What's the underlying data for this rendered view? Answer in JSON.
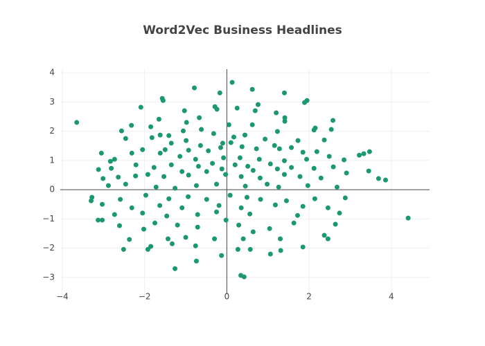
{
  "chart_data": {
    "type": "scatter",
    "title": "Word2Vec Business Headlines",
    "color": "#1b9870",
    "grid": true,
    "zeroline": true,
    "xlim": [
      -4.05,
      4.93
    ],
    "ylim": [
      -3.57,
      4.12
    ],
    "xticks": [
      {
        "value": -4,
        "label": "−4"
      },
      {
        "value": -2,
        "label": "−2"
      },
      0,
      2,
      4
    ],
    "yticks": [
      {
        "value": -3,
        "label": "−3"
      },
      {
        "value": -2,
        "label": "−2"
      },
      {
        "value": -1,
        "label": "−1"
      },
      0,
      1,
      2,
      3,
      4
    ],
    "x": [
      -3.65,
      0.13,
      -0.79,
      0.62,
      -1.57,
      -1.55,
      -0.17,
      1.4,
      1.95,
      1.89,
      -1.03,
      -0.29,
      -0.24,
      0.25,
      0.76,
      0.69,
      1.2,
      1.41,
      1.41,
      2.58,
      -2.09,
      -1.65,
      -0.98,
      -0.67,
      0.05,
      0.62,
      -2.32,
      -1.85,
      2.15,
      2.12,
      2.54,
      -2.56,
      -1.06,
      -0.62,
      -0.32,
      -1.62,
      -1.41,
      0.44,
      1.23,
      -2.46,
      -1.82,
      0.17,
      0.93,
      -0.99,
      -0.1,
      0.1,
      1.73,
      2.37,
      -1.35,
      -0.64,
      0.37,
      1.16,
      1.57,
      -3.05,
      -2.31,
      -2.05,
      -1.5,
      -0.93,
      -0.45,
      -0.15,
      0.72,
      1.28,
      1.85,
      2.19,
      3.22,
      3.33,
      3.47,
      -2.73,
      -2.83,
      -1.62,
      -1.14,
      -0.76,
      -0.08,
      0.32,
      0.79,
      1.4,
      1.94,
      2.49,
      2.85,
      -2.21,
      -1.77,
      -1.35,
      -0.69,
      -0.35,
      0.2,
      0.51,
      1.06,
      1.57,
      -3.12,
      -2.81,
      -1.09,
      -0.49,
      -0.12,
      0.64,
      1.23,
      2.12,
      2.59,
      3.45,
      -3.01,
      -2.64,
      -2.22,
      -1.92,
      -1.53,
      -0.93,
      -0.03,
      0.35,
      0.81,
      1.4,
      1.78,
      2.29,
      2.91,
      3.69,
      3.86,
      -2.88,
      -2.46,
      -1.72,
      -1.26,
      -0.74,
      -0.25,
      0.45,
      0.98,
      1.26,
      1.97,
      2.68,
      -3.28,
      -3.3,
      -2.59,
      -1.97,
      -1.41,
      -0.94,
      -0.49,
      0.08,
      0.49,
      0.82,
      1.45,
      2.14,
      2.88,
      -3.03,
      -2.31,
      -1.63,
      -1.09,
      -0.19,
      0.35,
      1.18,
      1.85,
      2.46,
      -2.73,
      -2.05,
      -1.46,
      -0.71,
      -0.25,
      0.56,
      1.72,
      2.74,
      -3.13,
      -3.03,
      -2.61,
      -1.75,
      -1.2,
      -0.02,
      0.29,
      1.04,
      1.63,
      2.64,
      4.41,
      -2.02,
      -0.71,
      0.64,
      -2.37,
      -1.43,
      -1.0,
      -0.3,
      0.4,
      1.3,
      2.37,
      2.46,
      -1.33,
      -1.85,
      -2.51,
      -1.92,
      -0.76,
      0.27,
      0.57,
      1.85,
      1.31,
      -0.13,
      1.06,
      -0.74,
      -1.26,
      0.34,
      0.42
    ],
    "y": [
      2.3,
      3.67,
      3.48,
      3.43,
      3.12,
      3.05,
      3.31,
      3.31,
      3.05,
      2.98,
      2.7,
      2.84,
      2.75,
      2.79,
      2.91,
      2.7,
      2.63,
      2.46,
      2.34,
      2.37,
      2.82,
      2.41,
      2.3,
      2.46,
      2.22,
      2.22,
      2.2,
      2.15,
      2.11,
      2.04,
      2.06,
      2.01,
      2.01,
      2.06,
      1.92,
      1.87,
      1.85,
      1.87,
      1.99,
      1.75,
      1.78,
      1.8,
      1.73,
      1.68,
      1.59,
      1.61,
      1.68,
      1.7,
      1.59,
      1.51,
      1.47,
      1.51,
      1.44,
      1.25,
      1.25,
      1.37,
      1.37,
      1.35,
      1.33,
      1.44,
      1.4,
      1.4,
      1.28,
      1.3,
      1.18,
      1.23,
      1.3,
      1.04,
      0.97,
      1.25,
      1.14,
      1.04,
      1.09,
      1.09,
      1.04,
      0.99,
      1.04,
      1.14,
      1.02,
      0.85,
      0.76,
      0.85,
      0.8,
      0.9,
      0.85,
      0.8,
      0.88,
      0.76,
      0.69,
      0.73,
      0.62,
      0.62,
      0.71,
      0.66,
      0.71,
      0.73,
      0.78,
      0.64,
      0.38,
      0.43,
      0.47,
      0.52,
      0.45,
      0.5,
      0.52,
      0.45,
      0.4,
      0.52,
      0.45,
      0.4,
      0.57,
      0.38,
      0.33,
      0.14,
      0.19,
      0.09,
      0.05,
      0.14,
      0.19,
      0.12,
      0.19,
      0.09,
      0.14,
      0.09,
      -0.26,
      -0.38,
      -0.33,
      -0.19,
      -0.31,
      -0.24,
      -0.33,
      -0.19,
      -0.26,
      -0.33,
      -0.38,
      -0.31,
      -0.28,
      -0.5,
      -0.62,
      -0.54,
      -0.62,
      -0.54,
      -0.62,
      -0.52,
      -0.57,
      -0.62,
      -0.85,
      -0.8,
      -0.9,
      -0.85,
      -0.76,
      -0.83,
      -0.88,
      -0.8,
      -1.04,
      -1.04,
      -1.23,
      -1.14,
      -1.21,
      -1.04,
      -1.21,
      -1.33,
      -1.14,
      -1.18,
      -0.97,
      -1.35,
      -1.28,
      -1.44,
      -1.7,
      -1.68,
      -1.63,
      -1.68,
      -1.68,
      -1.68,
      -1.56,
      -1.68,
      -1.85,
      -1.94,
      -2.04,
      -2.04,
      -1.92,
      -2.04,
      -2.04,
      -1.96,
      -2.08,
      -2.25,
      -2.2,
      -2.44,
      -2.7,
      -2.93,
      -2.98
    ]
  }
}
